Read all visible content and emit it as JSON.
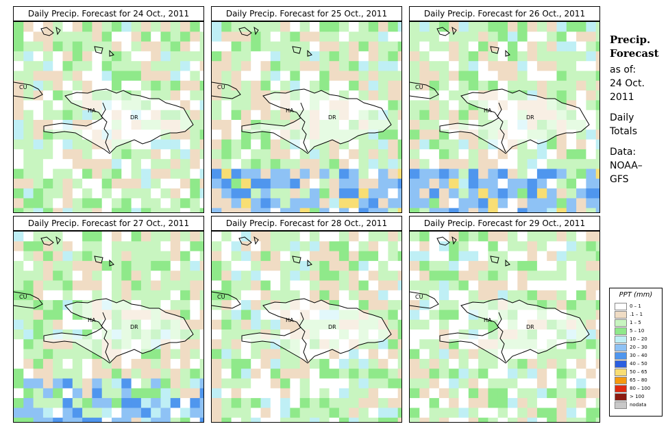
{
  "panels": [
    {
      "title": "Daily Precip. Forecast for  24 Oct., 2011",
      "seed": 11
    },
    {
      "title": "Daily Precip. Forecast for  25 Oct., 2011",
      "seed": 23
    },
    {
      "title": "Daily Precip. Forecast for  26 Oct., 2011",
      "seed": 37
    },
    {
      "title": "Daily Precip. Forecast for  27 Oct., 2011",
      "seed": 41
    },
    {
      "title": "Daily Precip. Forecast for  28 Oct., 2011",
      "seed": 53
    },
    {
      "title": "Daily Precip. Forecast for  29 Oct., 2011",
      "seed": 67
    }
  ],
  "map_labels": {
    "cu": "CU",
    "ha": "HA",
    "dr": "DR"
  },
  "sidebar": {
    "title_line1": "Precip.",
    "title_line2": "Forecast",
    "asof": "as of:",
    "date_line1": "24 Oct.",
    "date_line2": "2011",
    "daily_line1": "Daily",
    "daily_line2": "Totals",
    "data_line1": "Data:",
    "data_line2": "NOAA–",
    "data_line3": "GFS"
  },
  "legend": {
    "title": "PPT (mm)",
    "entries": [
      {
        "label": "0 – 1",
        "color": "#ffffff"
      },
      {
        "label": ".1 – 1",
        "color": "#f0dcc4"
      },
      {
        "label": "1 – 5",
        "color": "#c8f5c0"
      },
      {
        "label": "5 – 10",
        "color": "#8fe98a"
      },
      {
        "label": "10 – 20",
        "color": "#bfeff5"
      },
      {
        "label": "20 – 30",
        "color": "#8ec2f5"
      },
      {
        "label": "30 – 40",
        "color": "#4f96ee"
      },
      {
        "label": "40 – 50",
        "color": "#2b5fe0"
      },
      {
        "label": "50 – 65",
        "color": "#f8de74"
      },
      {
        "label": "65 – 80",
        "color": "#f59a10"
      },
      {
        "label": "80 – 100",
        "color": "#e02a10"
      },
      {
        "label": "> 100",
        "color": "#8b1a10"
      },
      {
        "label": "nodata",
        "color": "#c8c8c8"
      }
    ]
  }
}
